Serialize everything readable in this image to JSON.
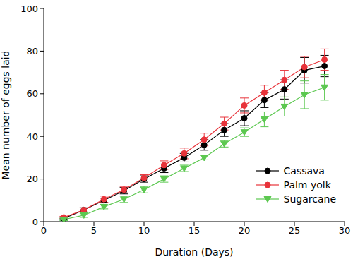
{
  "chart_data": {
    "type": "line",
    "x_label": "Duration (Days)",
    "y_label": "Mean number of eggs laid",
    "x": [
      2,
      4,
      6,
      8,
      10,
      12,
      14,
      16,
      18,
      20,
      22,
      24,
      26,
      28
    ],
    "xlim": [
      0,
      30
    ],
    "xticks": [
      0,
      5,
      10,
      15,
      20,
      25,
      30
    ],
    "ylim": [
      0,
      100
    ],
    "yticks": [
      0,
      20,
      40,
      60,
      80,
      100
    ],
    "grid": false,
    "legend": "lower right",
    "series": [
      {
        "name": "Cassava",
        "color": "#000000",
        "marker": "circle",
        "values": [
          1.5,
          5.5,
          10,
          14.5,
          20,
          25,
          30,
          36,
          43,
          48.5,
          57,
          62,
          71,
          73
        ],
        "errors": [
          0.5,
          1,
          1,
          1.5,
          1.5,
          2,
          2,
          2.5,
          3,
          3.5,
          3.5,
          4.5,
          6,
          5
        ]
      },
      {
        "name": "Palm yolk",
        "color": "#e8333a",
        "marker": "circle",
        "values": [
          2,
          5.5,
          10.5,
          15,
          20.5,
          26.5,
          32,
          38.5,
          46,
          54.5,
          60.5,
          66.5,
          72.5,
          76
        ],
        "errors": [
          0.5,
          1,
          1.5,
          1.5,
          1.5,
          2,
          2.5,
          3,
          3,
          3.5,
          3.5,
          4.5,
          5,
          5
        ]
      },
      {
        "name": "Sugarcane",
        "color": "#5cc850",
        "marker": "triangle",
        "values": [
          1,
          3,
          7,
          10.5,
          15,
          20,
          25,
          30,
          36.5,
          42,
          48,
          54,
          59.5,
          63
        ],
        "errors": [
          0.5,
          1,
          1,
          1.5,
          1.5,
          1.5,
          1.5,
          1,
          1.5,
          2,
          3.5,
          4.5,
          6.5,
          6
        ]
      }
    ]
  }
}
